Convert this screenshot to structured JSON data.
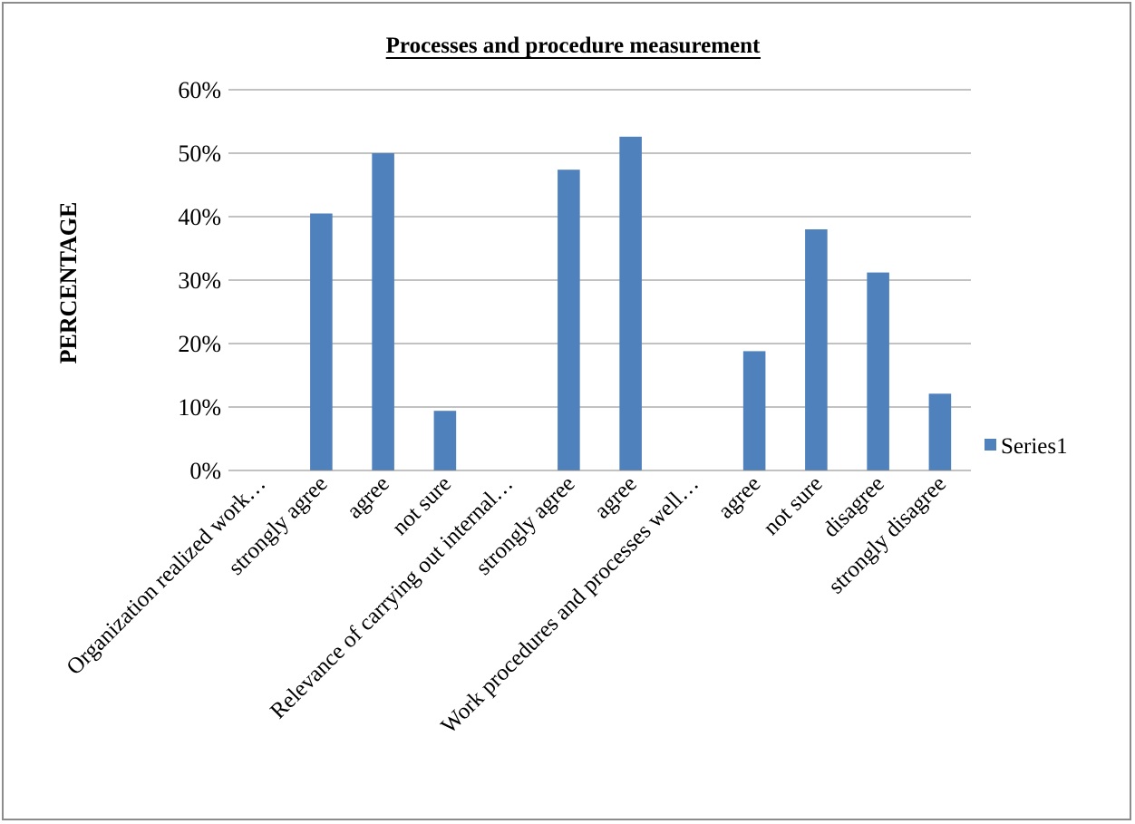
{
  "chart_data": {
    "type": "bar",
    "title": "Processes and procedure measurement",
    "ylabel": "PERCENTAGE",
    "xlabel": "",
    "ylim": [
      0,
      0.6
    ],
    "yticks": [
      "0%",
      "10%",
      "20%",
      "30%",
      "40%",
      "50%",
      "60%"
    ],
    "grid": true,
    "legend_position": "right",
    "categories": [
      "Organization realized work…",
      "strongly agree",
      "agree",
      "not sure",
      "Relevance of carrying out internal…",
      "strongly agree",
      "agree",
      "Work procedures and processes well…",
      "agree",
      "not sure",
      "disagree",
      "strongly disagree"
    ],
    "series": [
      {
        "name": "Series1",
        "color": "#4f81bd",
        "values": [
          null,
          0.405,
          0.5,
          0.094,
          null,
          0.474,
          0.526,
          null,
          0.188,
          0.38,
          0.312,
          0.121
        ]
      }
    ]
  }
}
